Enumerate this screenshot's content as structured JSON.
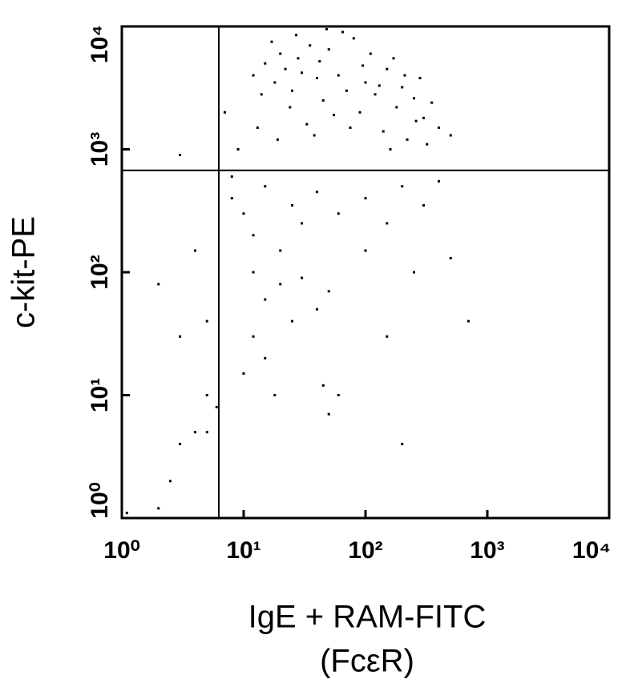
{
  "chart_data": {
    "type": "scatter",
    "x_label": "IgE + RAM-FITC",
    "x_label_sub": "(FcεR)",
    "y_label": "c-kit-PE",
    "xlim": [
      1,
      10000
    ],
    "ylim": [
      1,
      10000
    ],
    "log_x": true,
    "log_y": true,
    "xticks": [
      {
        "value": 1,
        "label": "10⁰"
      },
      {
        "value": 10,
        "label": "10¹"
      },
      {
        "value": 100,
        "label": "10²"
      },
      {
        "value": 1000,
        "label": "10³"
      },
      {
        "value": 10000,
        "label": "10⁴"
      }
    ],
    "yticks": [
      {
        "value": 1,
        "label": "10⁰"
      },
      {
        "value": 10,
        "label": "10¹"
      },
      {
        "value": 100,
        "label": "10²"
      },
      {
        "value": 1000,
        "label": "10³"
      },
      {
        "value": 10000,
        "label": "10⁴"
      }
    ],
    "gate_x": 6.25,
    "gate_y": 675,
    "color": "#000000",
    "x": [
      12,
      15,
      18,
      20,
      22,
      25,
      28,
      30,
      35,
      40,
      45,
      50,
      60,
      70,
      80,
      100,
      120,
      150,
      180,
      200,
      250,
      300,
      350,
      400,
      14,
      17,
      24,
      33,
      42,
      55,
      65,
      90,
      110,
      140,
      170,
      220,
      280,
      320,
      13,
      19,
      27,
      38,
      48,
      75,
      95,
      130,
      160,
      210,
      260,
      500,
      8,
      10,
      12,
      15,
      20,
      25,
      30,
      40,
      60,
      100,
      150,
      200,
      300,
      400,
      500,
      12,
      15,
      20,
      25,
      30,
      40,
      50,
      12,
      15,
      10,
      18,
      5,
      4,
      3,
      2.5,
      5,
      6,
      2,
      1.1,
      3,
      2,
      4,
      5,
      700,
      200,
      150,
      50,
      8,
      9,
      7,
      3,
      60,
      45,
      100,
      250
    ],
    "y": [
      4000,
      5000,
      3500,
      6000,
      4500,
      3000,
      5500,
      4200,
      7000,
      3800,
      2500,
      6500,
      4000,
      3000,
      8000,
      3500,
      2800,
      4500,
      2200,
      3200,
      2600,
      1800,
      2400,
      1500,
      2800,
      7500,
      2200,
      1600,
      5200,
      1900,
      9000,
      2000,
      6000,
      1400,
      5500,
      1200,
      3800,
      1100,
      1500,
      1200,
      8500,
      1300,
      9500,
      1500,
      4800,
      3300,
      1000,
      4000,
      1700,
      1300,
      400,
      300,
      200,
      500,
      150,
      350,
      250,
      450,
      300,
      400,
      250,
      500,
      350,
      550,
      130,
      100,
      60,
      80,
      40,
      90,
      50,
      70,
      30,
      20,
      15,
      10,
      10,
      5,
      4,
      2,
      5,
      8,
      1.2,
      1.1,
      30,
      80,
      150,
      40,
      40,
      4,
      30,
      7,
      600,
      1000,
      2000,
      900,
      10,
      12,
      150,
      100
    ]
  }
}
